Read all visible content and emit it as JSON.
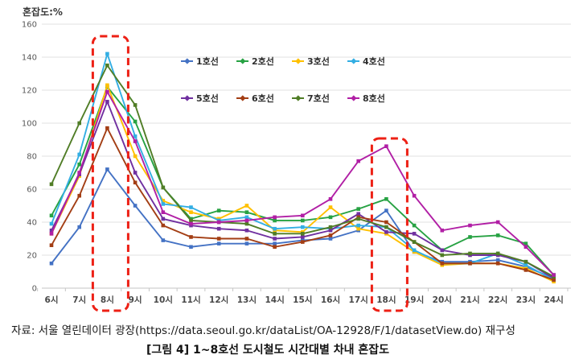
{
  "page": {
    "y_axis_title": "혼잡도:%",
    "source_text": "자료: 서울 열린데이터 광장(https://data.seoul.go.kr/dataList/OA-12928/F/1/datasetView.do) 재구성",
    "caption": "[그림 4] 1~8호선 도시철도 시간대별 차내 혼잡도"
  },
  "chart_data": {
    "type": "line",
    "title": "혼잡도:%",
    "xlabel": "",
    "ylabel": "혼잡도:%",
    "ylim": [
      0,
      160
    ],
    "y_ticks": [
      0,
      20,
      40,
      60,
      80,
      100,
      120,
      140,
      160
    ],
    "grid": true,
    "legend_position": "top-center-two-rows",
    "x_categories": [
      "6시",
      "7시",
      "8시",
      "9시",
      "10시",
      "11시",
      "12시",
      "13시",
      "14시",
      "15시",
      "16시",
      "17시",
      "18시",
      "19시",
      "20시",
      "21시",
      "22시",
      "23시",
      "24시"
    ],
    "series": [
      {
        "name": "1호선",
        "color": "#4472C4",
        "values": [
          15,
          37,
          72,
          50,
          29,
          25,
          27,
          27,
          27,
          29,
          30,
          35,
          47,
          22,
          16,
          16,
          17,
          13,
          6
        ]
      },
      {
        "name": "2호선",
        "color": "#27A243",
        "values": [
          44,
          75,
          122,
          101,
          61,
          42,
          47,
          46,
          41,
          41,
          43,
          48,
          54,
          38,
          23,
          31,
          32,
          27,
          8
        ]
      },
      {
        "name": "3호선",
        "color": "#FFC000",
        "values": [
          33,
          68,
          123,
          80,
          53,
          46,
          42,
          50,
          35,
          34,
          49,
          36,
          33,
          22,
          14,
          15,
          15,
          12,
          4
        ]
      },
      {
        "name": "4호선",
        "color": "#33AEE3",
        "values": [
          39,
          81,
          142,
          92,
          51,
          49,
          41,
          43,
          36,
          37,
          36,
          38,
          37,
          23,
          15,
          15,
          21,
          14,
          5
        ]
      },
      {
        "name": "5호선",
        "color": "#7030A0",
        "values": [
          35,
          69,
          113,
          70,
          42,
          38,
          36,
          35,
          30,
          31,
          35,
          45,
          34,
          33,
          23,
          20,
          20,
          16,
          6
        ]
      },
      {
        "name": "6호선",
        "color": "#A33E14",
        "values": [
          26,
          56,
          97,
          64,
          38,
          31,
          30,
          30,
          25,
          28,
          32,
          43,
          40,
          28,
          15,
          15,
          15,
          11,
          5
        ]
      },
      {
        "name": "7호선",
        "color": "#507D26",
        "values": [
          63,
          100,
          135,
          111,
          61,
          41,
          40,
          39,
          33,
          33,
          37,
          42,
          37,
          28,
          20,
          21,
          21,
          16,
          7
        ]
      },
      {
        "name": "8호선",
        "color": "#B11FA5",
        "values": [
          33,
          70,
          119,
          89,
          46,
          39,
          40,
          41,
          43,
          44,
          54,
          77,
          86,
          56,
          35,
          38,
          40,
          25,
          8
        ]
      }
    ],
    "highlight_boxes": [
      {
        "label": "8시"
      },
      {
        "label": "18시"
      }
    ],
    "highlight_color": "#ED2015"
  }
}
